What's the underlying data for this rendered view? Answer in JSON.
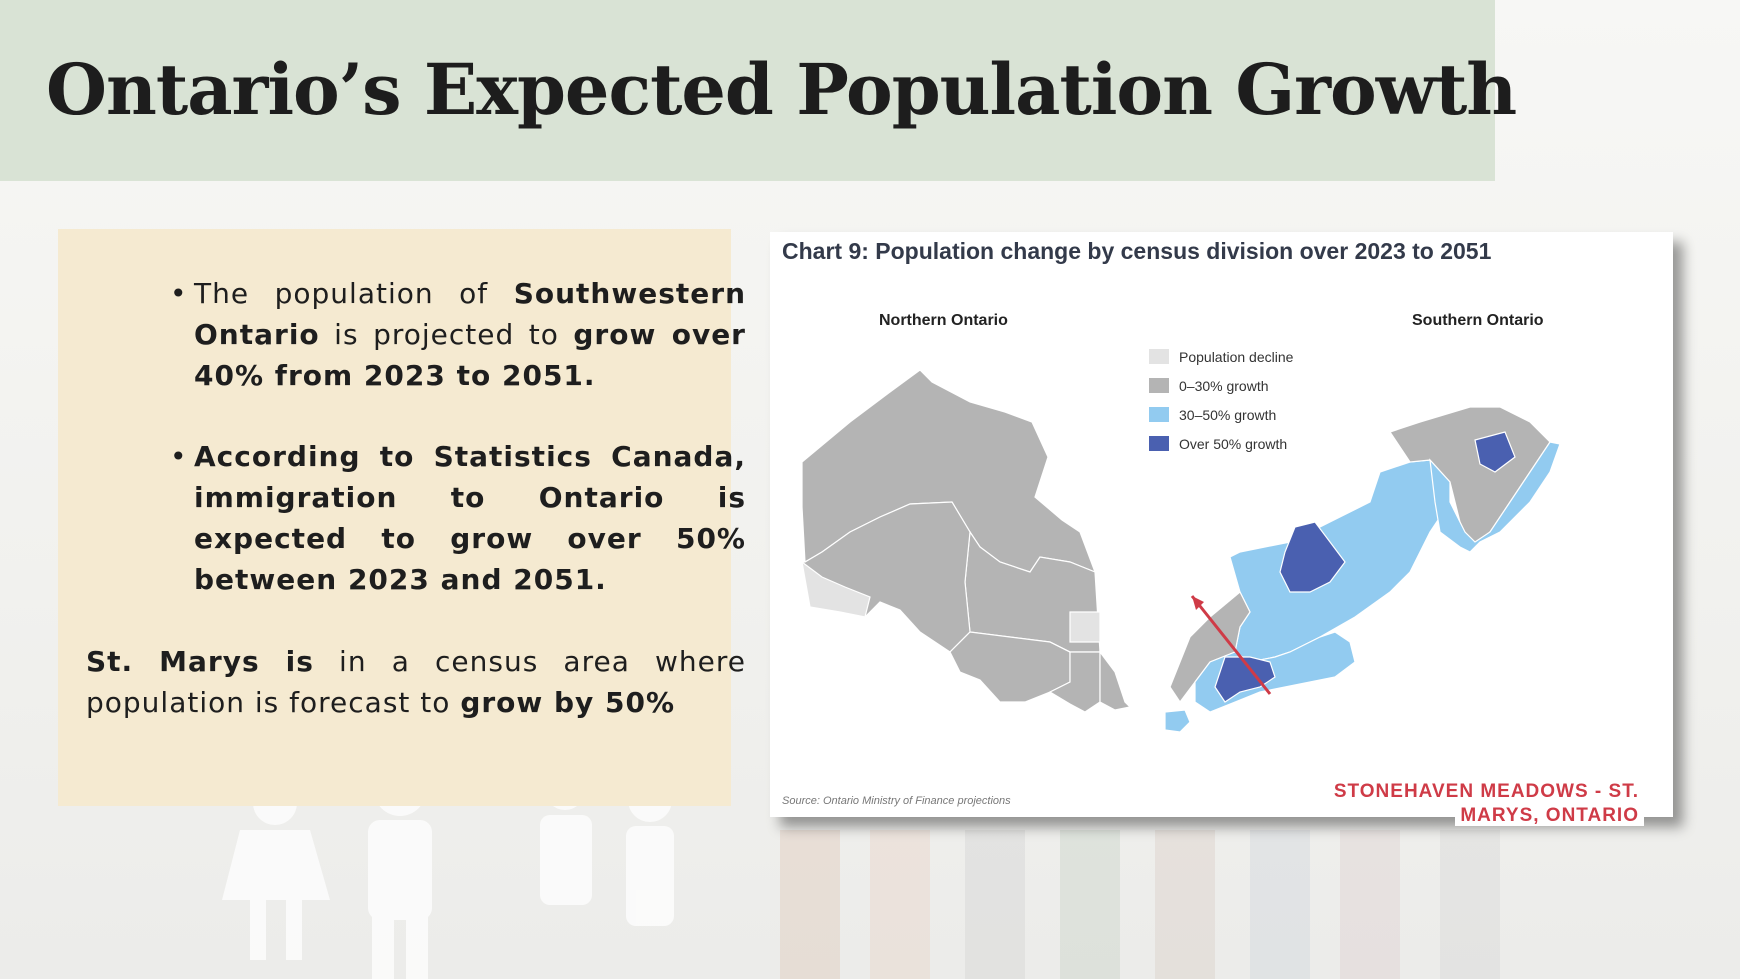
{
  "slide": {
    "title": "Ontario’s Expected Population Growth"
  },
  "text_box": {
    "bullets": [
      {
        "dot": "•",
        "parts": [
          {
            "text": "The population of ",
            "bold": false
          },
          {
            "text": "Southwestern Ontario",
            "bold": true
          },
          {
            "text": " is projected to ",
            "bold": false
          },
          {
            "text": "grow over 40%",
            "bold": true
          },
          {
            "text": " from 2023 to 2051.",
            "bold": true
          }
        ]
      },
      {
        "dot": "•",
        "parts": [
          {
            "text": "According to Statistics Canada, immigration to Ontario is expected to grow over 50% between 2023 and 2051.",
            "bold": true
          }
        ]
      }
    ],
    "summary": [
      {
        "text": "St. Marys is",
        "bold": true
      },
      {
        "text": " in a census area where population is forecast to ",
        "bold": false
      },
      {
        "text": "grow by 50%",
        "bold": true
      }
    ]
  },
  "map": {
    "title": "Chart 9: Population change by census division over 2023 to 2051",
    "region_labels": {
      "north": "Northern Ontario",
      "south": "Southern Ontario"
    },
    "legend": [
      {
        "label": "Population decline",
        "color": "#e3e3e3"
      },
      {
        "label": "0–30% growth",
        "color": "#b4b4b4"
      },
      {
        "label": "30–50% growth",
        "color": "#92cbf0"
      },
      {
        "label": "Over 50% growth",
        "color": "#4a60b0"
      }
    ],
    "source": "Source: Ontario Ministry of Finance projections",
    "callout": {
      "line1": "STONEHAVEN MEADOWS - ST.",
      "line2": "MARYS, ONTARIO",
      "color": "#cf3b47"
    }
  }
}
